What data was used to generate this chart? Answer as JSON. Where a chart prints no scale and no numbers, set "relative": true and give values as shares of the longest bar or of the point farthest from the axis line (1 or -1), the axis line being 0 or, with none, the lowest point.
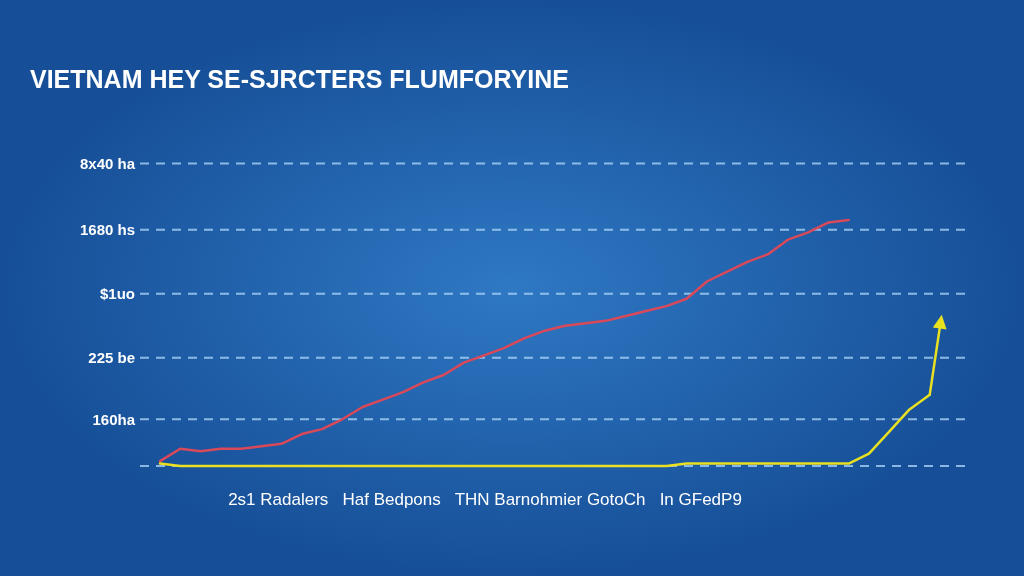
{
  "chart_data": {
    "type": "line",
    "title": "VIETNAM HEY SE-SJRCTERS FLUMFORYINE",
    "xlabel": "2s1 Radalers   Haf Bedpons   THN Barnohmier GotoCh   In GFedP9",
    "categories": [
      null,
      null,
      null,
      null,
      null,
      null,
      null,
      null,
      null,
      null,
      null,
      null,
      null,
      null,
      null,
      null,
      null,
      null,
      null,
      null,
      null,
      null,
      null,
      null,
      null,
      null,
      null,
      null,
      null,
      null,
      null,
      null,
      null,
      null,
      null,
      null,
      null,
      null,
      null,
      null
    ],
    "relative": true,
    "ref_lines": [
      {
        "axis": "y",
        "value": 0,
        "label": null,
        "color": "#a9d2f5",
        "line_style": "dashed"
      },
      {
        "axis": "y",
        "value": 0.19,
        "label": "160ha",
        "color": "#a9d2f5",
        "line_style": "dashed"
      },
      {
        "axis": "y",
        "value": 0.44,
        "label": "225 be",
        "color": "#a9d2f5",
        "line_style": "dashed"
      },
      {
        "axis": "y",
        "value": 0.7,
        "label": "$1uo",
        "color": "#a9d2f5",
        "line_style": "dashed"
      },
      {
        "axis": "y",
        "value": 0.96,
        "label": "1680 hs",
        "color": "#a9d2f5",
        "line_style": "dashed"
      },
      {
        "axis": "y",
        "value": 1.23,
        "label": "8x40 ha",
        "color": "#a9d2f5",
        "line_style": "dashed"
      }
    ],
    "line_style": "solid",
    "marker": "none",
    "series": [
      {
        "color": "#d9495a",
        "values": [
          0.02,
          0.07,
          0.06,
          0.07,
          0.07,
          0.08,
          0.09,
          0.13,
          0.15,
          0.19,
          0.24,
          0.27,
          0.3,
          0.34,
          0.37,
          0.42,
          0.45,
          0.48,
          0.52,
          0.55,
          0.57,
          0.58,
          0.59,
          0.61,
          0.63,
          0.65,
          0.68,
          0.75,
          0.79,
          0.83,
          0.86,
          0.92,
          0.95,
          0.99,
          1,
          null,
          null,
          null,
          null,
          null
        ]
      },
      {
        "color": "#e8e020",
        "values": [
          0.01,
          0,
          0,
          0,
          0,
          0,
          0,
          0,
          0,
          0,
          0,
          0,
          0,
          0,
          0,
          0,
          0,
          0,
          0,
          0,
          0,
          0,
          0,
          0,
          0,
          0,
          0.01,
          0.01,
          0.01,
          0.01,
          0.01,
          0.01,
          0.01,
          0.01,
          0.01,
          0.05,
          0.14,
          0.23,
          0.29,
          null
        ]
      }
    ]
  }
}
